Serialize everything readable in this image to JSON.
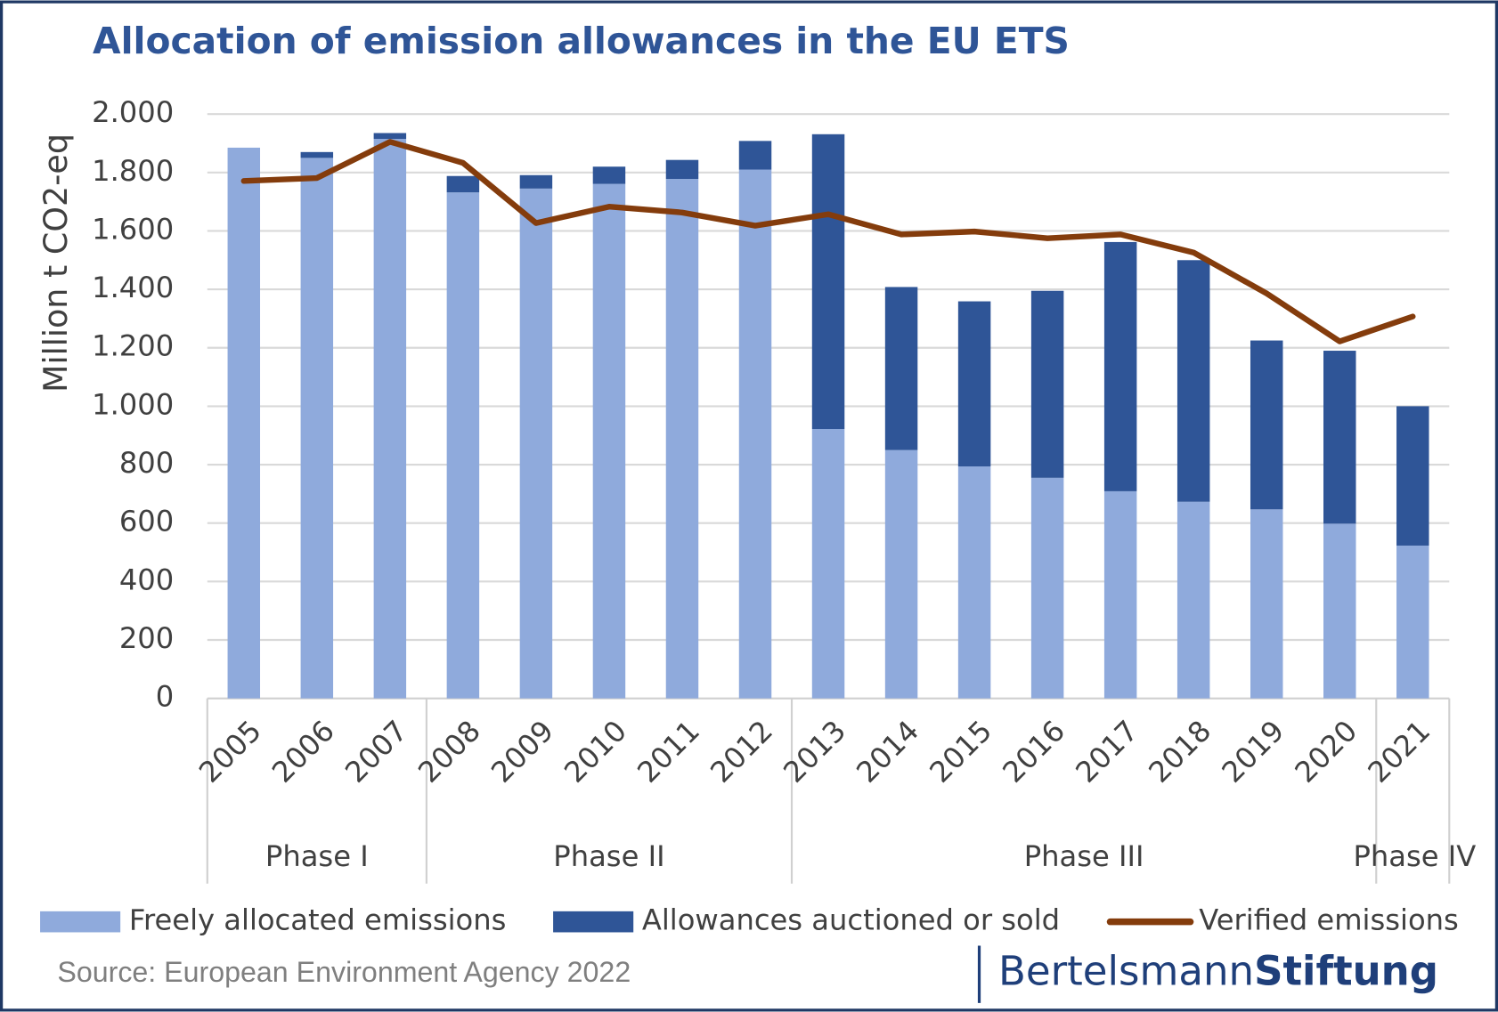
{
  "chart_data": {
    "type": "bar",
    "stacked": true,
    "title": "Allocation of emission allowances in the EU ETS",
    "y_label": "Million t CO2-eq",
    "source": "Source: European Environment Agency 2022",
    "logo": {
      "regular": "Bertelsmann",
      "bold": "Stiftung"
    },
    "categories": [
      "2005",
      "2006",
      "2007",
      "2008",
      "2009",
      "2010",
      "2011",
      "2012",
      "2013",
      "2014",
      "2015",
      "2016",
      "2017",
      "2018",
      "2019",
      "2020",
      "2021"
    ],
    "phases": [
      {
        "name": "Phase I",
        "span": 3
      },
      {
        "name": "Phase II",
        "span": 5
      },
      {
        "name": "Phase III",
        "span": 8
      },
      {
        "name": "Phase IV",
        "span": 1
      }
    ],
    "series": [
      {
        "name": "Freely allocated emissions",
        "color": "#8faadc",
        "type": "bar",
        "values": [
          1885,
          1850,
          1915,
          1732,
          1745,
          1761,
          1778,
          1810,
          922,
          850,
          794,
          755,
          709,
          673,
          647,
          598,
          523
        ]
      },
      {
        "name": "Allowances auctioned or sold",
        "color": "#2f5597",
        "type": "bar",
        "values": [
          0,
          20,
          20,
          56,
          46,
          59,
          65,
          98,
          1009,
          558,
          565,
          640,
          853,
          827,
          578,
          592,
          477
        ]
      },
      {
        "name": "Verified emissions",
        "color": "#843c0c",
        "type": "line",
        "values": [
          1771,
          1781,
          1905,
          1833,
          1627,
          1683,
          1663,
          1618,
          1657,
          1588,
          1598,
          1575,
          1588,
          1526,
          1386,
          1222,
          1307
        ]
      }
    ],
    "ylim": [
      0,
      2000
    ],
    "yticks": [
      0,
      200,
      400,
      600,
      800,
      {
        "value": 1000,
        "label": "1.000"
      },
      {
        "value": 1200,
        "label": "1.200"
      },
      {
        "value": 1400,
        "label": "1.400"
      },
      {
        "value": 1600,
        "label": "1.600"
      },
      {
        "value": 1800,
        "label": "1.800"
      },
      {
        "value": 2000,
        "label": "2.000"
      }
    ],
    "grid": true,
    "legend": "bottom"
  }
}
